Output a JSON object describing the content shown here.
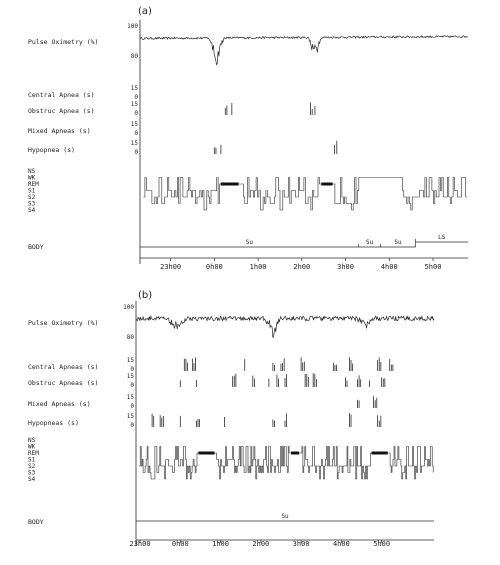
{
  "chart_data": [
    {
      "type": "line",
      "panel_label": "(a)",
      "rows": {
        "pulse_oximetry": {
          "label": "Pulse Oximetry (%)",
          "ticks": [
            "100",
            "80"
          ],
          "ylim": [
            75,
            100
          ]
        },
        "central_apnea": {
          "label": "Central Apnea (s)",
          "ticks": [
            "15",
            "0"
          ]
        },
        "obstruc_apnea": {
          "label": "Obstruc Apnea (s)",
          "ticks": [
            "15",
            "0"
          ]
        },
        "mixed_apneas": {
          "label": "Mixed Apneas (s)",
          "ticks": [
            "15",
            "0"
          ]
        },
        "hypopnea": {
          "label": "Hypopnea (s)",
          "ticks": [
            "15",
            "0"
          ]
        },
        "sleep_stage": {
          "labels": [
            "NS",
            "WK",
            "REM",
            "S1",
            "S2",
            "S3",
            "S4"
          ]
        },
        "body": {
          "label": "BODY"
        }
      },
      "x_ticks": [
        "23h00",
        "0h00",
        "1h00",
        "2h00",
        "3h00",
        "4h00",
        "5h00"
      ],
      "x_ticks_hours": [
        23,
        24,
        25,
        26,
        27,
        28,
        29
      ],
      "xlim_hours": [
        22.3,
        29.8
      ],
      "body_segments": [
        {
          "label": "Su",
          "start": 22.3,
          "end": 27.3
        },
        {
          "label": "Su",
          "start": 27.3,
          "end": 27.8
        },
        {
          "label": "Su",
          "start": 27.8,
          "end": 28.6
        },
        {
          "label": "LS",
          "start": 28.6,
          "end": 29.8
        }
      ],
      "events": {
        "central_apnea": [],
        "obstruc_apnea": [
          24.25,
          24.4,
          26.2,
          26.3
        ],
        "mixed_apneas": [],
        "hypopnea": [
          24.0,
          24.15,
          26.75,
          26.8
        ]
      },
      "spo2_dips": [
        {
          "center": 24.05,
          "width": 0.35,
          "depth": 15
        },
        {
          "center": 26.3,
          "width": 0.3,
          "depth": 12
        }
      ],
      "spo2_baseline": 95,
      "rem_periods": [
        [
          24.1,
          24.6
        ],
        [
          26.4,
          26.75
        ]
      ]
    },
    {
      "type": "line",
      "panel_label": "(b)",
      "rows": {
        "pulse_oximetry": {
          "label": "Pulse Oximetry (%)",
          "ticks": [
            "100",
            "80"
          ],
          "ylim": [
            75,
            100
          ]
        },
        "central_apneas": {
          "label": "Central Apneas (s)",
          "ticks": [
            "15",
            "0"
          ]
        },
        "obstruc_apneas": {
          "label": "Obstruc Apneas (s)",
          "ticks": [
            "15",
            "0"
          ]
        },
        "mixed_apneas": {
          "label": "Mixed Apneas (s)",
          "ticks": [
            "15",
            "0"
          ]
        },
        "hypopneas": {
          "label": "Hypopneas (s)",
          "ticks": [
            "15",
            "0"
          ]
        },
        "sleep_stage": {
          "labels": [
            "NS",
            "WK",
            "REM",
            "S1",
            "S2",
            "S3",
            "S4"
          ]
        },
        "body": {
          "label": "BODY"
        }
      },
      "x_ticks": [
        "23h00",
        "0h00",
        "1h00",
        "2h00",
        "3h00",
        "4h00",
        "5h00"
      ],
      "x_ticks_hours": [
        23,
        24,
        25,
        26,
        27,
        28,
        29
      ],
      "xlim_hours": [
        22.9,
        30.3
      ],
      "body_segments": [
        {
          "label": "Su",
          "start": 22.9,
          "end": 30.3
        }
      ],
      "events": {
        "central_apneas": [
          24.1,
          24.3,
          25.6,
          26.3,
          26.5,
          27.0,
          27.8,
          28.2,
          28.9,
          29.2
        ],
        "obstruc_apneas": [
          24.0,
          24.4,
          25.3,
          25.8,
          26.2,
          26.4,
          26.6,
          27.1,
          27.3,
          28.1,
          28.4,
          28.7,
          29.0
        ],
        "mixed_apneas": [
          28.4,
          28.8
        ],
        "hypopneas": [
          23.3,
          23.5,
          24.0,
          24.4,
          25.1,
          26.3,
          26.6,
          28.2,
          28.9
        ]
      },
      "spo2_dips": [
        {
          "center": 23.9,
          "width": 0.5,
          "depth": 6
        },
        {
          "center": 26.3,
          "width": 0.4,
          "depth": 9
        },
        {
          "center": 28.6,
          "width": 0.5,
          "depth": 4
        }
      ],
      "spo2_baseline": 96,
      "rem_periods": [
        [
          24.4,
          24.9
        ],
        [
          26.7,
          27.0
        ],
        [
          28.7,
          29.2
        ]
      ]
    }
  ]
}
